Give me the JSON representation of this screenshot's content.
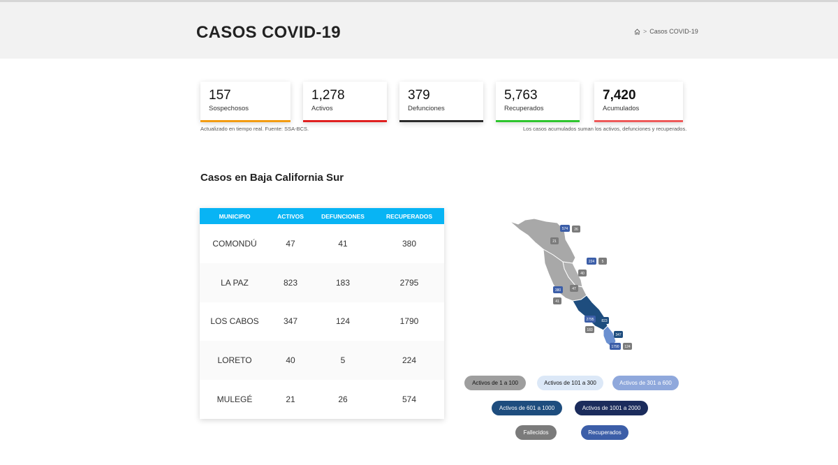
{
  "header": {
    "title": "CASOS COVID-19",
    "breadcrumb_current": "Casos COVID-19"
  },
  "stats": [
    {
      "value": "157",
      "label": "Sospechosos",
      "color": "#f39c12"
    },
    {
      "value": "1,278",
      "label": "Activos",
      "color": "#e02020"
    },
    {
      "value": "379",
      "label": "Defunciones",
      "color": "#2b2b2b"
    },
    {
      "value": "5,763",
      "label": "Recuperados",
      "color": "#2ec52e"
    },
    {
      "value": "7,420",
      "label": "Acumulados",
      "color": "#ee5a5a"
    }
  ],
  "notes": {
    "left": "Actualizado en tiempo real. Fuente: SSA-BCS.",
    "right": "Los casos acumulados suman los activos, defunciones y recuperados."
  },
  "section_title": "Casos en Baja California Sur",
  "table": {
    "headers": [
      "MUNICIPIO",
      "ACTIVOS",
      "DEFUNCIONES",
      "RECUPERADOS"
    ],
    "rows": [
      [
        "COMONDÚ",
        "47",
        "41",
        "380"
      ],
      [
        "LA PAZ",
        "823",
        "183",
        "2795"
      ],
      [
        "LOS CABOS",
        "347",
        "124",
        "1790"
      ],
      [
        "LORETO",
        "40",
        "5",
        "224"
      ],
      [
        "MULEGÉ",
        "21",
        "26",
        "574"
      ]
    ]
  },
  "map": {
    "badges": [
      "574",
      "26",
      "21",
      "224",
      "5",
      "40",
      "380",
      "47",
      "41",
      "2795",
      "823",
      "183",
      "347",
      "1790",
      "124"
    ]
  },
  "legend": {
    "a": "Activos de 1 a 100",
    "b": "Activos de 101 a 300",
    "c": "Activos de 301 a 600",
    "d": "Activos de 601 a 1000",
    "e": "Activos de 1001 a 2000",
    "f": "Fallecidos",
    "g": "Recuperados"
  },
  "colors": {
    "table_header": "#08b4f4",
    "legend_1_100": "#9e9e9e",
    "legend_101_300": "#dce8f7",
    "legend_301_600": "#8fa8dc",
    "legend_601_1000": "#1e4d7e",
    "legend_1001_2000": "#1b2c5c",
    "fallecidos": "#7b7b7b",
    "recuperados": "#3c5ea8"
  }
}
